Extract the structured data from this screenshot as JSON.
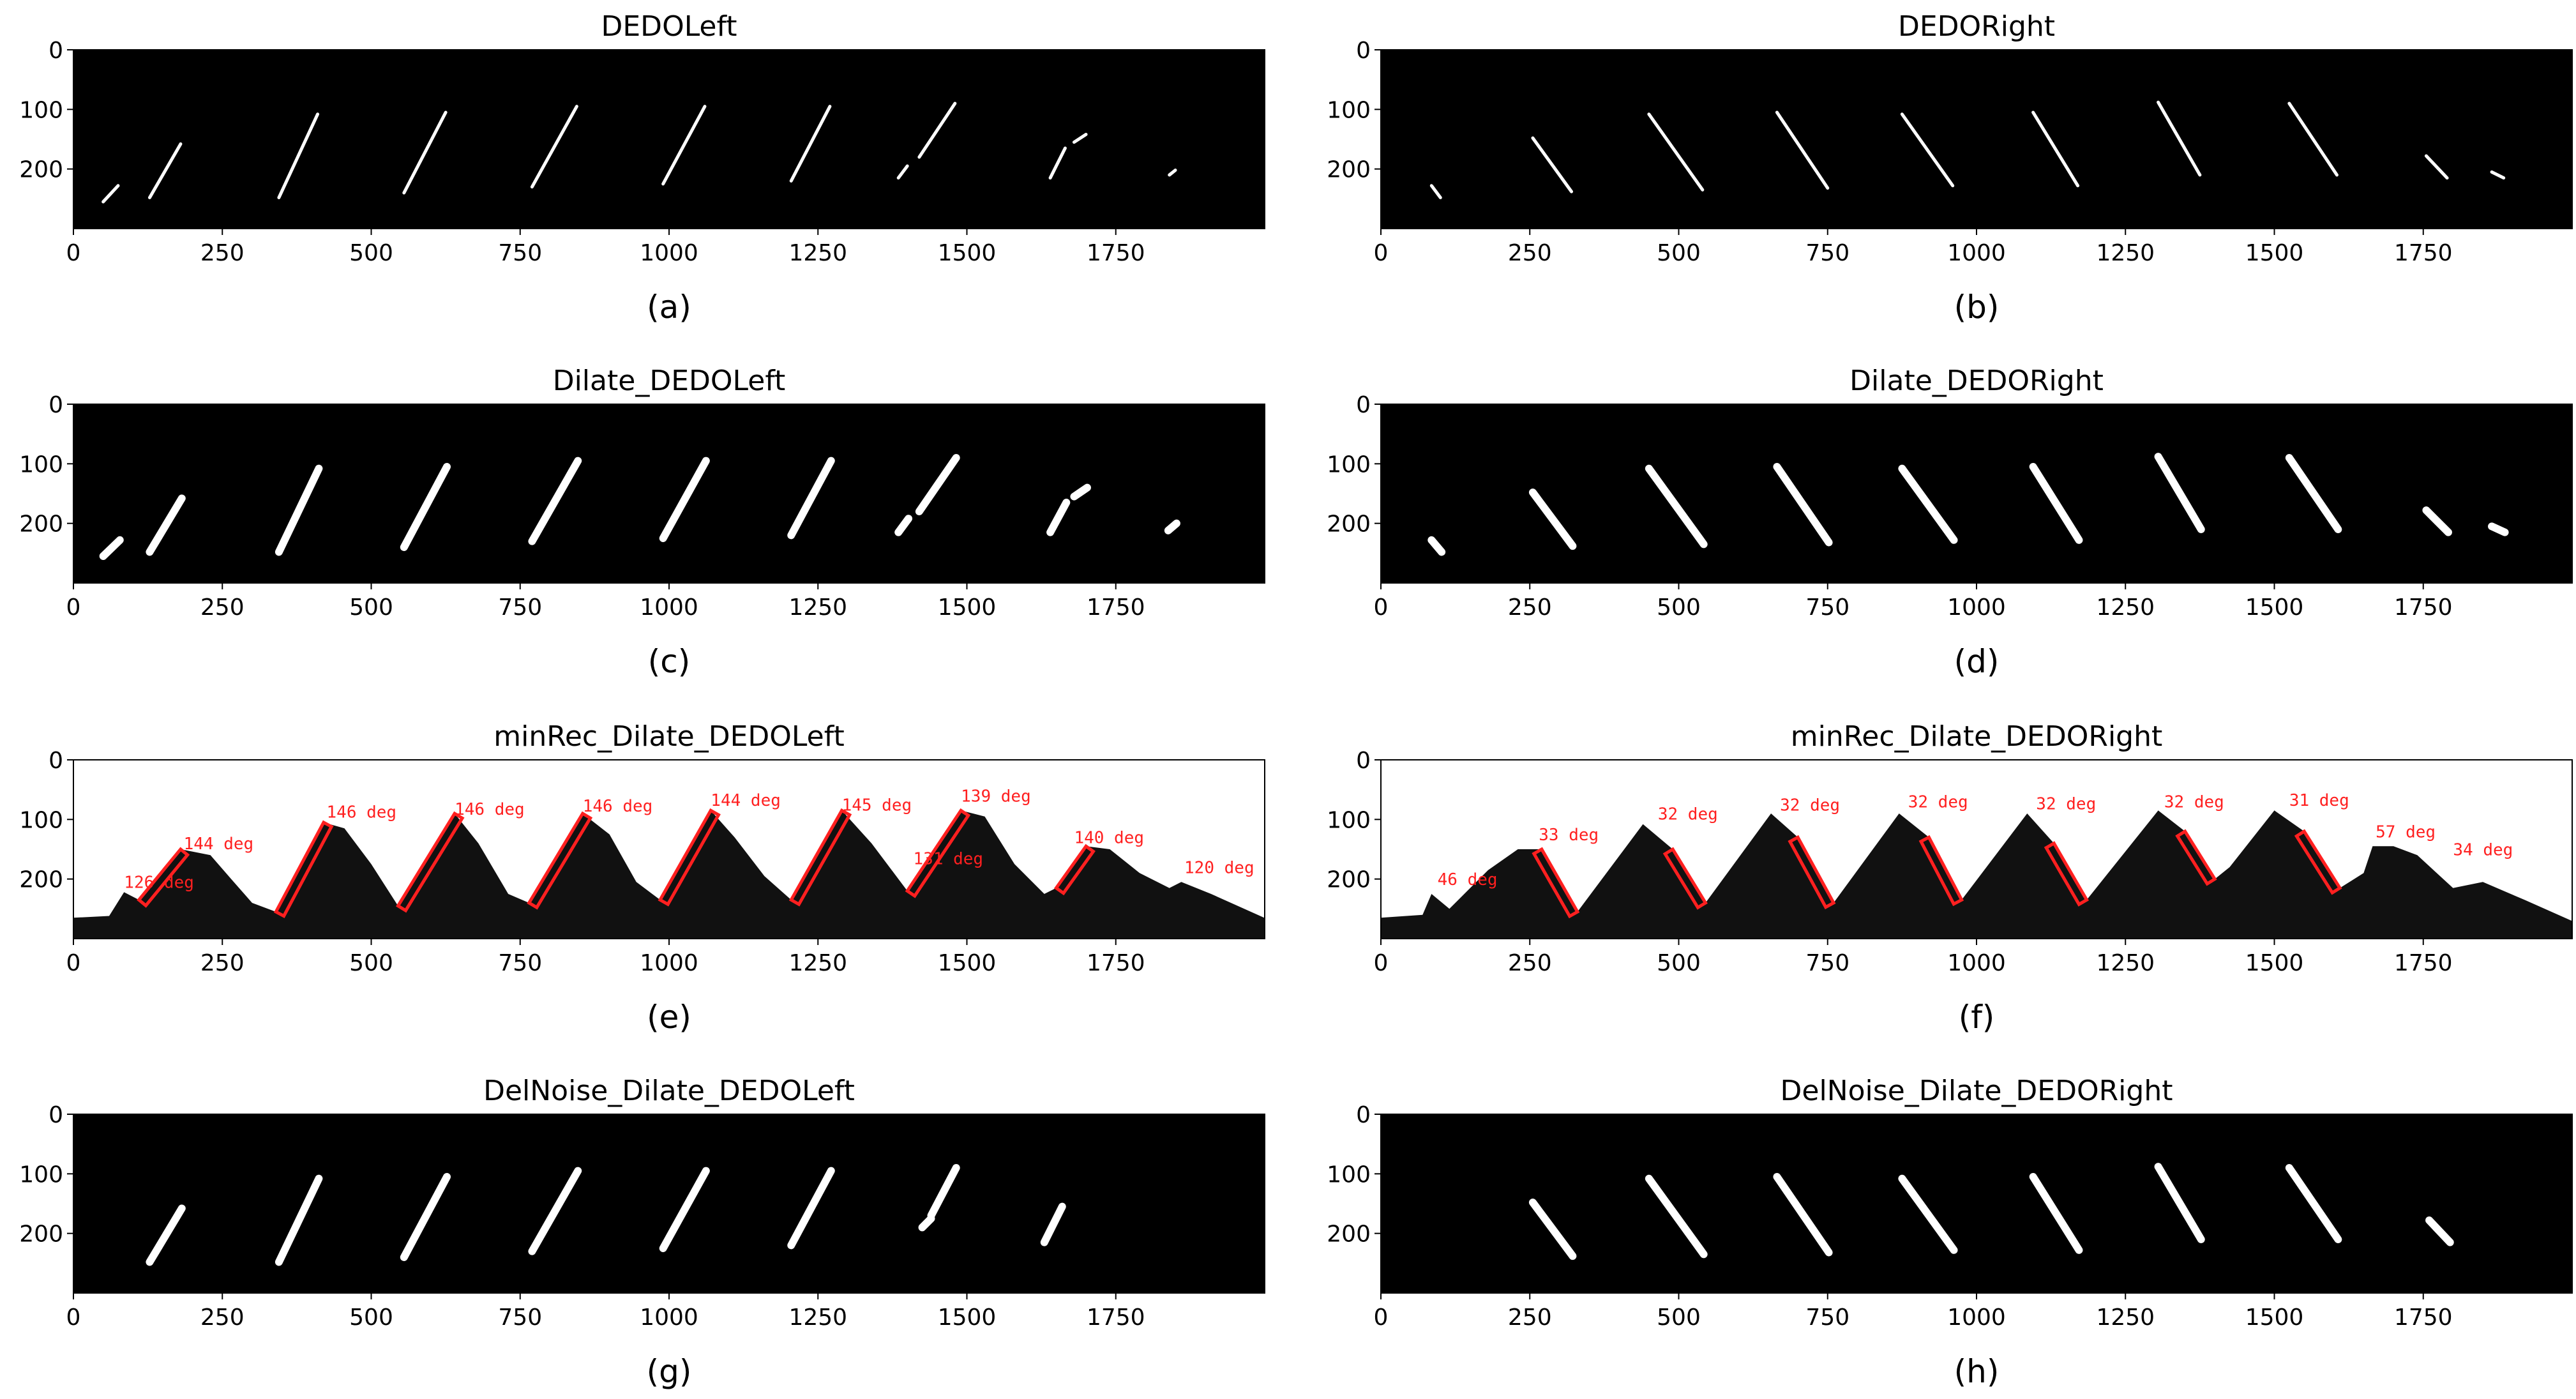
{
  "figure": {
    "panels": [
      {
        "id": "a",
        "title": "DEDOLeft",
        "caption": "(a)",
        "variant": "mask",
        "side": "left",
        "strokes": [
          [
            50,
            255,
            75,
            228
          ],
          [
            128,
            248,
            180,
            158
          ],
          [
            345,
            248,
            410,
            108
          ],
          [
            555,
            240,
            625,
            105
          ],
          [
            770,
            230,
            845,
            95
          ],
          [
            990,
            225,
            1060,
            95
          ],
          [
            1205,
            220,
            1270,
            95
          ],
          [
            1420,
            180,
            1480,
            90
          ],
          [
            1385,
            215,
            1400,
            195
          ],
          [
            1640,
            215,
            1665,
            165
          ],
          [
            1680,
            155,
            1700,
            142
          ],
          [
            1840,
            210,
            1850,
            202
          ]
        ]
      },
      {
        "id": "b",
        "title": "DEDORight",
        "caption": "(b)",
        "variant": "mask",
        "side": "right",
        "strokes": [
          [
            85,
            228,
            100,
            248
          ],
          [
            255,
            148,
            320,
            238
          ],
          [
            450,
            108,
            540,
            235
          ],
          [
            665,
            105,
            750,
            232
          ],
          [
            875,
            108,
            960,
            228
          ],
          [
            1095,
            105,
            1170,
            228
          ],
          [
            1305,
            88,
            1375,
            210
          ],
          [
            1525,
            90,
            1605,
            210
          ],
          [
            1755,
            178,
            1790,
            215
          ],
          [
            1865,
            205,
            1885,
            215
          ]
        ]
      },
      {
        "id": "c",
        "title": "Dilate_DEDOLeft",
        "caption": "(c)",
        "variant": "dilate",
        "side": "left",
        "strokes": [
          [
            50,
            255,
            78,
            228
          ],
          [
            128,
            248,
            182,
            158
          ],
          [
            345,
            248,
            412,
            108
          ],
          [
            555,
            240,
            627,
            105
          ],
          [
            770,
            230,
            847,
            95
          ],
          [
            990,
            225,
            1062,
            95
          ],
          [
            1205,
            220,
            1272,
            95
          ],
          [
            1420,
            180,
            1482,
            90
          ],
          [
            1385,
            215,
            1402,
            192
          ],
          [
            1640,
            215,
            1667,
            165
          ],
          [
            1680,
            155,
            1702,
            140
          ],
          [
            1838,
            212,
            1852,
            200
          ]
        ]
      },
      {
        "id": "d",
        "title": "Dilate_DEDORight",
        "caption": "(d)",
        "variant": "dilate",
        "side": "right",
        "strokes": [
          [
            85,
            228,
            102,
            248
          ],
          [
            255,
            148,
            322,
            238
          ],
          [
            450,
            108,
            542,
            235
          ],
          [
            665,
            105,
            752,
            232
          ],
          [
            875,
            108,
            962,
            228
          ],
          [
            1095,
            105,
            1172,
            228
          ],
          [
            1305,
            88,
            1377,
            210
          ],
          [
            1525,
            90,
            1607,
            210
          ],
          [
            1755,
            178,
            1792,
            215
          ],
          [
            1865,
            205,
            1887,
            215
          ]
        ]
      },
      {
        "id": "e",
        "title": "minRec_Dilate_DEDOLeft",
        "caption": "(e)",
        "variant": "rect",
        "side": "left",
        "peaks": [
          [
            0,
            265
          ],
          [
            60,
            262
          ],
          [
            85,
            222
          ],
          [
            110,
            235
          ],
          [
            180,
            150
          ],
          [
            230,
            160
          ],
          [
            265,
            200
          ],
          [
            300,
            240
          ],
          [
            340,
            255
          ],
          [
            420,
            105
          ],
          [
            455,
            115
          ],
          [
            500,
            175
          ],
          [
            545,
            245
          ],
          [
            640,
            90
          ],
          [
            680,
            140
          ],
          [
            730,
            225
          ],
          [
            765,
            240
          ],
          [
            855,
            90
          ],
          [
            900,
            125
          ],
          [
            945,
            205
          ],
          [
            985,
            235
          ],
          [
            1070,
            85
          ],
          [
            1110,
            130
          ],
          [
            1160,
            195
          ],
          [
            1205,
            235
          ],
          [
            1290,
            85
          ],
          [
            1340,
            140
          ],
          [
            1400,
            220
          ],
          [
            1490,
            85
          ],
          [
            1530,
            95
          ],
          [
            1580,
            175
          ],
          [
            1630,
            225
          ],
          [
            1650,
            215
          ],
          [
            1700,
            145
          ],
          [
            1740,
            150
          ],
          [
            1790,
            190
          ],
          [
            1840,
            215
          ],
          [
            1860,
            205
          ],
          [
            1910,
            225
          ],
          [
            1999,
            265
          ]
        ],
        "labels": [
          {
            "x": 85,
            "y": 215,
            "text": "126 deg"
          },
          {
            "x": 185,
            "y": 150,
            "text": "144 deg"
          },
          {
            "x": 425,
            "y": 97,
            "text": "146 deg"
          },
          {
            "x": 640,
            "y": 92,
            "text": "146 deg"
          },
          {
            "x": 855,
            "y": 87,
            "text": "146 deg"
          },
          {
            "x": 1070,
            "y": 77,
            "text": "144 deg"
          },
          {
            "x": 1290,
            "y": 85,
            "text": "145 deg"
          },
          {
            "x": 1410,
            "y": 175,
            "text": "131 deg"
          },
          {
            "x": 1490,
            "y": 70,
            "text": "139 deg"
          },
          {
            "x": 1680,
            "y": 140,
            "text": "140 deg"
          },
          {
            "x": 1865,
            "y": 190,
            "text": "120 deg"
          }
        ]
      },
      {
        "id": "f",
        "title": "minRec_Dilate_DEDORight",
        "caption": "(f)",
        "variant": "rect",
        "side": "right",
        "peaks": [
          [
            0,
            265
          ],
          [
            70,
            260
          ],
          [
            85,
            225
          ],
          [
            115,
            250
          ],
          [
            180,
            185
          ],
          [
            230,
            150
          ],
          [
            270,
            150
          ],
          [
            330,
            255
          ],
          [
            440,
            108
          ],
          [
            490,
            150
          ],
          [
            545,
            240
          ],
          [
            655,
            90
          ],
          [
            700,
            130
          ],
          [
            760,
            240
          ],
          [
            870,
            90
          ],
          [
            920,
            130
          ],
          [
            975,
            235
          ],
          [
            1085,
            90
          ],
          [
            1130,
            140
          ],
          [
            1185,
            235
          ],
          [
            1305,
            85
          ],
          [
            1350,
            120
          ],
          [
            1400,
            200
          ],
          [
            1425,
            180
          ],
          [
            1500,
            85
          ],
          [
            1550,
            120
          ],
          [
            1610,
            215
          ],
          [
            1650,
            190
          ],
          [
            1665,
            145
          ],
          [
            1700,
            145
          ],
          [
            1740,
            160
          ],
          [
            1800,
            215
          ],
          [
            1850,
            205
          ],
          [
            1920,
            235
          ],
          [
            1999,
            270
          ]
        ],
        "labels": [
          {
            "x": 95,
            "y": 210,
            "text": "46 deg"
          },
          {
            "x": 265,
            "y": 135,
            "text": "33 deg"
          },
          {
            "x": 465,
            "y": 100,
            "text": "32 deg"
          },
          {
            "x": 670,
            "y": 85,
            "text": "32 deg"
          },
          {
            "x": 885,
            "y": 80,
            "text": "32 deg"
          },
          {
            "x": 1100,
            "y": 83,
            "text": "32 deg"
          },
          {
            "x": 1315,
            "y": 80,
            "text": "32 deg"
          },
          {
            "x": 1525,
            "y": 77,
            "text": "31 deg"
          },
          {
            "x": 1670,
            "y": 130,
            "text": "57 deg"
          },
          {
            "x": 1800,
            "y": 160,
            "text": "34 deg"
          }
        ]
      },
      {
        "id": "g",
        "title": "DelNoise_Dilate_DEDOLeft",
        "caption": "(g)",
        "variant": "dilate",
        "side": "left",
        "strokes": [
          [
            128,
            248,
            182,
            158
          ],
          [
            345,
            248,
            412,
            108
          ],
          [
            555,
            240,
            627,
            105
          ],
          [
            770,
            230,
            847,
            95
          ],
          [
            990,
            225,
            1062,
            95
          ],
          [
            1205,
            220,
            1272,
            95
          ],
          [
            1440,
            170,
            1482,
            90
          ],
          [
            1425,
            190,
            1440,
            175
          ],
          [
            1630,
            215,
            1660,
            155
          ]
        ]
      },
      {
        "id": "h",
        "title": "DelNoise_Dilate_DEDORight",
        "caption": "(h)",
        "variant": "dilate",
        "side": "right",
        "strokes": [
          [
            255,
            148,
            322,
            238
          ],
          [
            450,
            108,
            542,
            235
          ],
          [
            665,
            105,
            752,
            232
          ],
          [
            875,
            108,
            962,
            228
          ],
          [
            1095,
            105,
            1172,
            228
          ],
          [
            1305,
            88,
            1377,
            210
          ],
          [
            1525,
            90,
            1607,
            210
          ],
          [
            1760,
            178,
            1795,
            215
          ]
        ]
      }
    ],
    "axes": {
      "xlim": [
        0,
        2000
      ],
      "ylim": [
        300,
        0
      ],
      "xticks": [
        "0",
        "250",
        "500",
        "750",
        "1000",
        "1250",
        "1500",
        "1750"
      ],
      "yticks": [
        "0",
        "100",
        "200"
      ]
    }
  }
}
